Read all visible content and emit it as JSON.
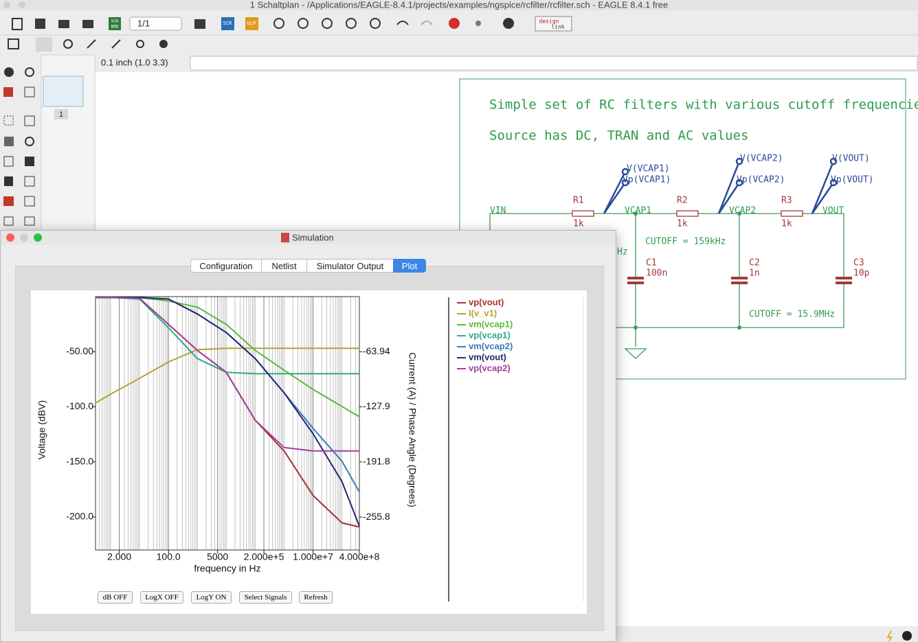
{
  "window": {
    "title": "1 Schaltplan - /Applications/EAGLE-8.4.1/projects/examples/ngspice/rcfilter/rcfilter.sch - EAGLE 8.4.1 free"
  },
  "toolbar": {
    "page": "1/1",
    "icon_labels": [
      "SCH",
      "BRD",
      "SCR",
      "ULP",
      "design",
      "link"
    ]
  },
  "grid_status": "0.1 inch (1.0 3.3)",
  "sheets": [
    "1"
  ],
  "schematic": {
    "heading": "Simple set of RC filters with various cutoff frequencies",
    "subheading": "Source has DC, TRAN and AC values",
    "resistors": [
      {
        "name": "R1",
        "value": "1k"
      },
      {
        "name": "R2",
        "value": "1k"
      },
      {
        "name": "R3",
        "value": "1k"
      }
    ],
    "capacitors": [
      {
        "name": "C1",
        "value": "100n"
      },
      {
        "name": "C2",
        "value": "1n"
      },
      {
        "name": "C3",
        "value": "10p"
      }
    ],
    "nets": [
      "VIN",
      "VCAP1",
      "VCAP2",
      "VOUT"
    ],
    "probes": [
      [
        "V(VCAP1)",
        "Vp(VCAP1)"
      ],
      [
        "V(VCAP2)",
        "Vp(VCAP2)"
      ],
      [
        "V(VOUT)",
        "Vp(VOUT)"
      ]
    ],
    "notes": [
      "CUTOFF = 159kHz",
      "CUTOFF = 15.9MHz",
      "Hz"
    ]
  },
  "simulation": {
    "title": "Simulation",
    "tabs": [
      "Configuration",
      "Netlist",
      "Simulator Output",
      "Plot"
    ],
    "buttons": [
      "dB OFF",
      "LogX OFF",
      "LogY ON",
      "Select Signals",
      "Refresh"
    ],
    "plot": {
      "type": "line",
      "xlabel": "frequency in Hz",
      "ylabel": "Voltage (dBV)",
      "y2label": "Current (A) / Phase Angle (Degrees)",
      "log_x": true,
      "x": [
        0.3,
        1,
        10,
        100,
        1000,
        10000,
        100000,
        1000000,
        10000000,
        100000000,
        400000000
      ],
      "xlim": [
        0.3,
        400000000
      ],
      "xticks": [
        {
          "value": 2,
          "label": "2.000"
        },
        {
          "value": 100,
          "label": "100.0"
        },
        5000,
        {
          "value": 200000,
          "label": "2.000e+5"
        },
        {
          "value": 10000000,
          "label": "1.000e+7"
        },
        {
          "value": 400000000,
          "label": "4.000e+8"
        }
      ],
      "ylim": [
        -230,
        0
      ],
      "yticks": [
        {
          "value": -50,
          "label": "-50.00"
        },
        {
          "value": -100,
          "label": "-100.0"
        },
        {
          "value": -150,
          "label": "-150.0"
        },
        {
          "value": -200,
          "label": "-200.0"
        }
      ],
      "y2lim": [
        -294,
        0
      ],
      "y2ticks": [
        -63.94,
        -127.9,
        -191.8,
        -255.8
      ],
      "grid": true,
      "series": [
        {
          "name": "vp(vout)",
          "color": "#a83030",
          "axis": "y2",
          "values": [
            -1,
            -1,
            -2,
            -32.2,
            -62.4,
            -87.8,
            -143.4,
            -179.1,
            -230.7,
            -262.5,
            -267.3
          ]
        },
        {
          "name": "I(v_v1)",
          "color": "#b3a431",
          "values": [
            -96.6,
            -88.5,
            -74.2,
            -59.3,
            -48.1,
            -46.9,
            -46.9,
            -46.9,
            -46.9,
            -46.9,
            -46.9
          ]
        },
        {
          "name": "vm(vcap1)",
          "color": "#5cb83a",
          "values": [
            -0.9,
            -0.9,
            -0.9,
            -4.0,
            -9.6,
            -25.2,
            -48.8,
            -66.8,
            -84.2,
            -99.7,
            -109.0
          ]
        },
        {
          "name": "vp(vcap1)",
          "color": "#2fa88a",
          "axis": "y2",
          "values": [
            -1,
            -1,
            -2.8,
            -36.2,
            -71.9,
            -87.8,
            -89.4,
            -89.4,
            -89.4,
            -89.4,
            -89.4
          ]
        },
        {
          "name": "vm(vcap2)",
          "color": "#3a7cb4",
          "values": [
            -0.9,
            -0.9,
            -0.9,
            -2.2,
            -15.8,
            -32.6,
            -56.2,
            -87.3,
            -119.6,
            -149.4,
            -177.3
          ]
        },
        {
          "name": "vm(vout)",
          "color": "#26266e",
          "values": [
            -0.9,
            -0.9,
            -0.9,
            -2.2,
            -15.8,
            -32.6,
            -56.2,
            -87.3,
            -124.5,
            -168.0,
            -208.4
          ]
        },
        {
          "name": "vp(vcap2)",
          "color": "#a0409c",
          "axis": "y2",
          "values": [
            -1,
            -1,
            -2,
            -32.2,
            -62.4,
            -87.8,
            -143.4,
            -175.1,
            -179.1,
            -179.1,
            -179.1
          ]
        }
      ]
    }
  }
}
